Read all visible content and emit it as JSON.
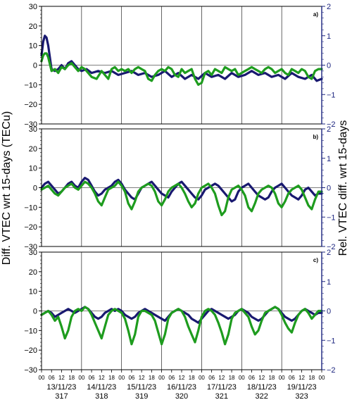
{
  "chart_data": {
    "type": "line",
    "ylabel_left": "Diff. VTEC wrt 15-days (TECu)",
    "ylabel_right": "Rel. VTEC diff. wrt 15-days",
    "ylim_left": [
      -30,
      30
    ],
    "ylim_right": [
      -2,
      2
    ],
    "yticks_left": [
      "30",
      "20",
      "10",
      "0",
      "−10",
      "−20",
      "−30"
    ],
    "yticks_right": [
      "2",
      "1",
      "0",
      "−1",
      "−2"
    ],
    "xlim_hours": [
      0,
      168
    ],
    "hour_tick_labels": [
      "00",
      "06",
      "12",
      "18"
    ],
    "days": [
      {
        "date": "13/11/23",
        "doy": "317"
      },
      {
        "date": "14/11/23",
        "doy": "318"
      },
      {
        "date": "15/11/23",
        "doy": "319"
      },
      {
        "date": "16/11/23",
        "doy": "320"
      },
      {
        "date": "17/11/23",
        "doy": "321"
      },
      {
        "date": "18/11/23",
        "doy": "322"
      },
      {
        "date": "19/11/23",
        "doy": "323"
      }
    ],
    "colors": {
      "series1": "#191970",
      "series2": "#1e9c1e",
      "axis_right": "#1a237e"
    },
    "panels": [
      {
        "label": "a)",
        "series": [
          {
            "color_key": "series1",
            "x": [
              0,
              1,
              2,
              3,
              4,
              6,
              8,
              10,
              12,
              14,
              16,
              18,
              20,
              22,
              24,
              27,
              30,
              34,
              38,
              42,
              46,
              50,
              54,
              58,
              62,
              66,
              70,
              74,
              78,
              82,
              86,
              90,
              94,
              98,
              102,
              106,
              110,
              114,
              118,
              122,
              126,
              130,
              134,
              138,
              142,
              146,
              150,
              154,
              158,
              162,
              165,
              168
            ],
            "y": [
              5,
              12,
              15,
              14,
              10,
              -2,
              -3,
              -2,
              0,
              -2,
              1,
              2,
              0,
              -2,
              -3,
              -2,
              -4,
              -3,
              -4,
              -3,
              -5,
              -4,
              -3,
              -5,
              -4,
              -6,
              -5,
              -3,
              -6,
              -4,
              -7,
              -5,
              -7,
              -4,
              -6,
              -5,
              -7,
              -4,
              -6,
              -5,
              -3,
              -5,
              -4,
              -6,
              -5,
              -7,
              -4,
              -6,
              -7,
              -5,
              -8,
              -7
            ]
          },
          {
            "color_key": "series2",
            "x": [
              0,
              1,
              2,
              3,
              4,
              6,
              8,
              10,
              12,
              14,
              16,
              18,
              20,
              22,
              24,
              26,
              28,
              30,
              33,
              36,
              38,
              40,
              42,
              44,
              46,
              48,
              50,
              52,
              54,
              56,
              58,
              60,
              62,
              64,
              66,
              68,
              70,
              72,
              74,
              76,
              78,
              80,
              82,
              84,
              86,
              88,
              90,
              92,
              94,
              96,
              98,
              100,
              102,
              104,
              106,
              108,
              110,
              112,
              114,
              116,
              118,
              120,
              122,
              124,
              126,
              128,
              130,
              132,
              134,
              136,
              138,
              140,
              142,
              144,
              146,
              148,
              150,
              152,
              154,
              156,
              158,
              160,
              162,
              164,
              166,
              168
            ],
            "y": [
              2,
              5,
              6,
              6,
              4,
              -3,
              -2,
              -4,
              -1,
              -2,
              0,
              1,
              -1,
              -3,
              -1,
              -2,
              -4,
              -6,
              -7,
              -3,
              -5,
              -7,
              -2,
              -1,
              -3,
              -2,
              -3,
              -2,
              -4,
              -2,
              -1,
              -2,
              -3,
              -7,
              -8,
              -5,
              -3,
              -2,
              -3,
              -1,
              -2,
              -5,
              -6,
              -2,
              -4,
              -3,
              -2,
              -7,
              -10,
              -9,
              -4,
              -3,
              -5,
              -2,
              -3,
              -4,
              -1,
              -2,
              -3,
              -2,
              -5,
              -4,
              -3,
              -2,
              -1,
              -2,
              -3,
              -4,
              -2,
              -1,
              -2,
              -4,
              -3,
              -2,
              -4,
              -5,
              -2,
              -3,
              -4,
              -2,
              -3,
              -6,
              -7,
              -3,
              -2,
              -2
            ]
          }
        ]
      },
      {
        "label": "b)",
        "series": [
          {
            "color_key": "series1",
            "x": [
              0,
              2,
              4,
              6,
              8,
              10,
              12,
              14,
              16,
              18,
              20,
              22,
              24,
              26,
              28,
              30,
              32,
              34,
              36,
              38,
              40,
              42,
              44,
              46,
              48,
              50,
              52,
              54,
              56,
              58,
              60,
              62,
              64,
              66,
              68,
              70,
              72,
              74,
              76,
              78,
              80,
              82,
              84,
              86,
              88,
              90,
              92,
              94,
              96,
              98,
              100,
              102,
              104,
              106,
              108,
              110,
              112,
              114,
              116,
              118,
              120,
              122,
              124,
              126,
              128,
              130,
              132,
              134,
              136,
              138,
              140,
              142,
              144,
              146,
              148,
              150,
              152,
              154,
              156,
              158,
              160,
              162,
              164,
              166,
              168
            ],
            "y": [
              0,
              2,
              3,
              1,
              -1,
              -3,
              -2,
              0,
              2,
              3,
              1,
              0,
              3,
              5,
              4,
              1,
              -2,
              -4,
              -3,
              -1,
              0,
              1,
              3,
              4,
              2,
              -1,
              -3,
              -5,
              -6,
              -3,
              0,
              1,
              2,
              3,
              1,
              -1,
              -3,
              -4,
              -5,
              -2,
              0,
              2,
              3,
              1,
              -1,
              -3,
              -5,
              -6,
              -4,
              -1,
              0,
              1,
              2,
              1,
              -1,
              -3,
              -5,
              -7,
              -6,
              -2,
              0,
              1,
              2,
              0,
              -2,
              -4,
              -5,
              -6,
              -5,
              -2,
              0,
              1,
              2,
              0,
              -2,
              -4,
              -5,
              -6,
              -4,
              -1,
              0,
              -2,
              -4,
              -3,
              -3
            ]
          },
          {
            "color_key": "series2",
            "x": [
              0,
              2,
              4,
              6,
              8,
              10,
              12,
              14,
              16,
              18,
              20,
              22,
              24,
              26,
              28,
              30,
              32,
              34,
              36,
              38,
              40,
              42,
              44,
              46,
              48,
              50,
              52,
              54,
              56,
              58,
              60,
              62,
              64,
              66,
              68,
              70,
              72,
              74,
              76,
              78,
              80,
              82,
              84,
              86,
              88,
              90,
              92,
              94,
              96,
              98,
              100,
              102,
              104,
              106,
              108,
              110,
              112,
              114,
              116,
              118,
              120,
              122,
              124,
              126,
              128,
              130,
              132,
              134,
              136,
              138,
              140,
              142,
              144,
              146,
              148,
              150,
              152,
              154,
              156,
              158,
              160,
              162,
              164,
              166,
              168
            ],
            "y": [
              -1,
              0,
              1,
              -1,
              -3,
              -4,
              -2,
              0,
              1,
              2,
              0,
              -1,
              1,
              3,
              2,
              0,
              -3,
              -7,
              -9,
              -5,
              -1,
              0,
              1,
              3,
              1,
              -2,
              -8,
              -11,
              -7,
              -2,
              0,
              1,
              2,
              1,
              -2,
              -7,
              -9,
              -6,
              -2,
              0,
              1,
              2,
              0,
              -3,
              -7,
              -10,
              -8,
              -3,
              0,
              1,
              2,
              0,
              -3,
              -9,
              -14,
              -12,
              -5,
              -1,
              0,
              1,
              -1,
              -4,
              -10,
              -12,
              -8,
              -3,
              -1,
              0,
              1,
              0,
              -3,
              -8,
              -10,
              -7,
              -3,
              -1,
              0,
              1,
              -1,
              -5,
              -9,
              -11,
              -6,
              -2,
              -2
            ]
          }
        ]
      },
      {
        "label": "c)",
        "series": [
          {
            "color_key": "series1",
            "x": [
              0,
              2,
              4,
              6,
              8,
              10,
              12,
              14,
              16,
              18,
              20,
              22,
              24,
              26,
              28,
              30,
              32,
              34,
              36,
              38,
              40,
              42,
              44,
              46,
              48,
              50,
              52,
              54,
              56,
              58,
              60,
              62,
              64,
              66,
              68,
              70,
              72,
              74,
              76,
              78,
              80,
              82,
              84,
              86,
              88,
              90,
              92,
              94,
              96,
              98,
              100,
              102,
              104,
              106,
              108,
              110,
              112,
              114,
              116,
              118,
              120,
              122,
              124,
              126,
              128,
              130,
              132,
              134,
              136,
              138,
              140,
              142,
              144,
              146,
              148,
              150,
              152,
              154,
              156,
              158,
              160,
              162,
              164,
              166,
              168
            ],
            "y": [
              -2,
              -1,
              0,
              -1,
              -3,
              -2,
              -1,
              0,
              1,
              0,
              -1,
              0,
              1,
              2,
              1,
              -1,
              -3,
              -4,
              -3,
              -1,
              0,
              1,
              0,
              1,
              0,
              -2,
              -3,
              -4,
              -3,
              -1,
              0,
              1,
              0,
              -1,
              -2,
              -3,
              -4,
              -5,
              -3,
              -1,
              0,
              1,
              0,
              -1,
              -2,
              -4,
              -5,
              -6,
              -4,
              -2,
              0,
              1,
              0,
              -1,
              -2,
              -3,
              -4,
              -3,
              -2,
              0,
              1,
              0,
              -1,
              -3,
              -4,
              -5,
              -4,
              -2,
              0,
              1,
              2,
              1,
              -1,
              -3,
              -4,
              -5,
              -4,
              -2,
              0,
              1,
              0,
              -1,
              -2,
              -1,
              -1
            ]
          },
          {
            "color_key": "series2",
            "x": [
              0,
              2,
              4,
              6,
              8,
              10,
              12,
              14,
              16,
              18,
              20,
              22,
              24,
              26,
              28,
              30,
              32,
              34,
              36,
              38,
              40,
              42,
              44,
              46,
              48,
              50,
              52,
              54,
              56,
              58,
              60,
              62,
              64,
              66,
              68,
              70,
              72,
              74,
              76,
              78,
              80,
              82,
              84,
              86,
              88,
              90,
              92,
              94,
              96,
              98,
              100,
              102,
              104,
              106,
              108,
              110,
              112,
              114,
              116,
              118,
              120,
              122,
              124,
              126,
              128,
              130,
              132,
              134,
              136,
              138,
              140,
              142,
              144,
              146,
              148,
              150,
              152,
              154,
              156,
              158,
              160,
              162,
              164,
              166,
              168
            ],
            "y": [
              -2,
              -1,
              0,
              -2,
              -5,
              -3,
              -8,
              -14,
              -10,
              -3,
              0,
              1,
              0,
              2,
              1,
              -2,
              -6,
              -10,
              -14,
              -8,
              -2,
              0,
              1,
              0,
              -1,
              -4,
              -10,
              -17,
              -12,
              -3,
              0,
              0,
              -1,
              -2,
              -5,
              -11,
              -17,
              -12,
              -4,
              -1,
              0,
              1,
              0,
              -3,
              -8,
              -12,
              -16,
              -10,
              -3,
              0,
              1,
              0,
              -2,
              -6,
              -11,
              -17,
              -12,
              -4,
              -1,
              0,
              1,
              -1,
              -3,
              -8,
              -12,
              -10,
              -5,
              -1,
              0,
              1,
              2,
              1,
              -2,
              -6,
              -9,
              -11,
              -6,
              -2,
              0,
              1,
              -1,
              -4,
              -2,
              0,
              0
            ]
          }
        ]
      }
    ]
  }
}
